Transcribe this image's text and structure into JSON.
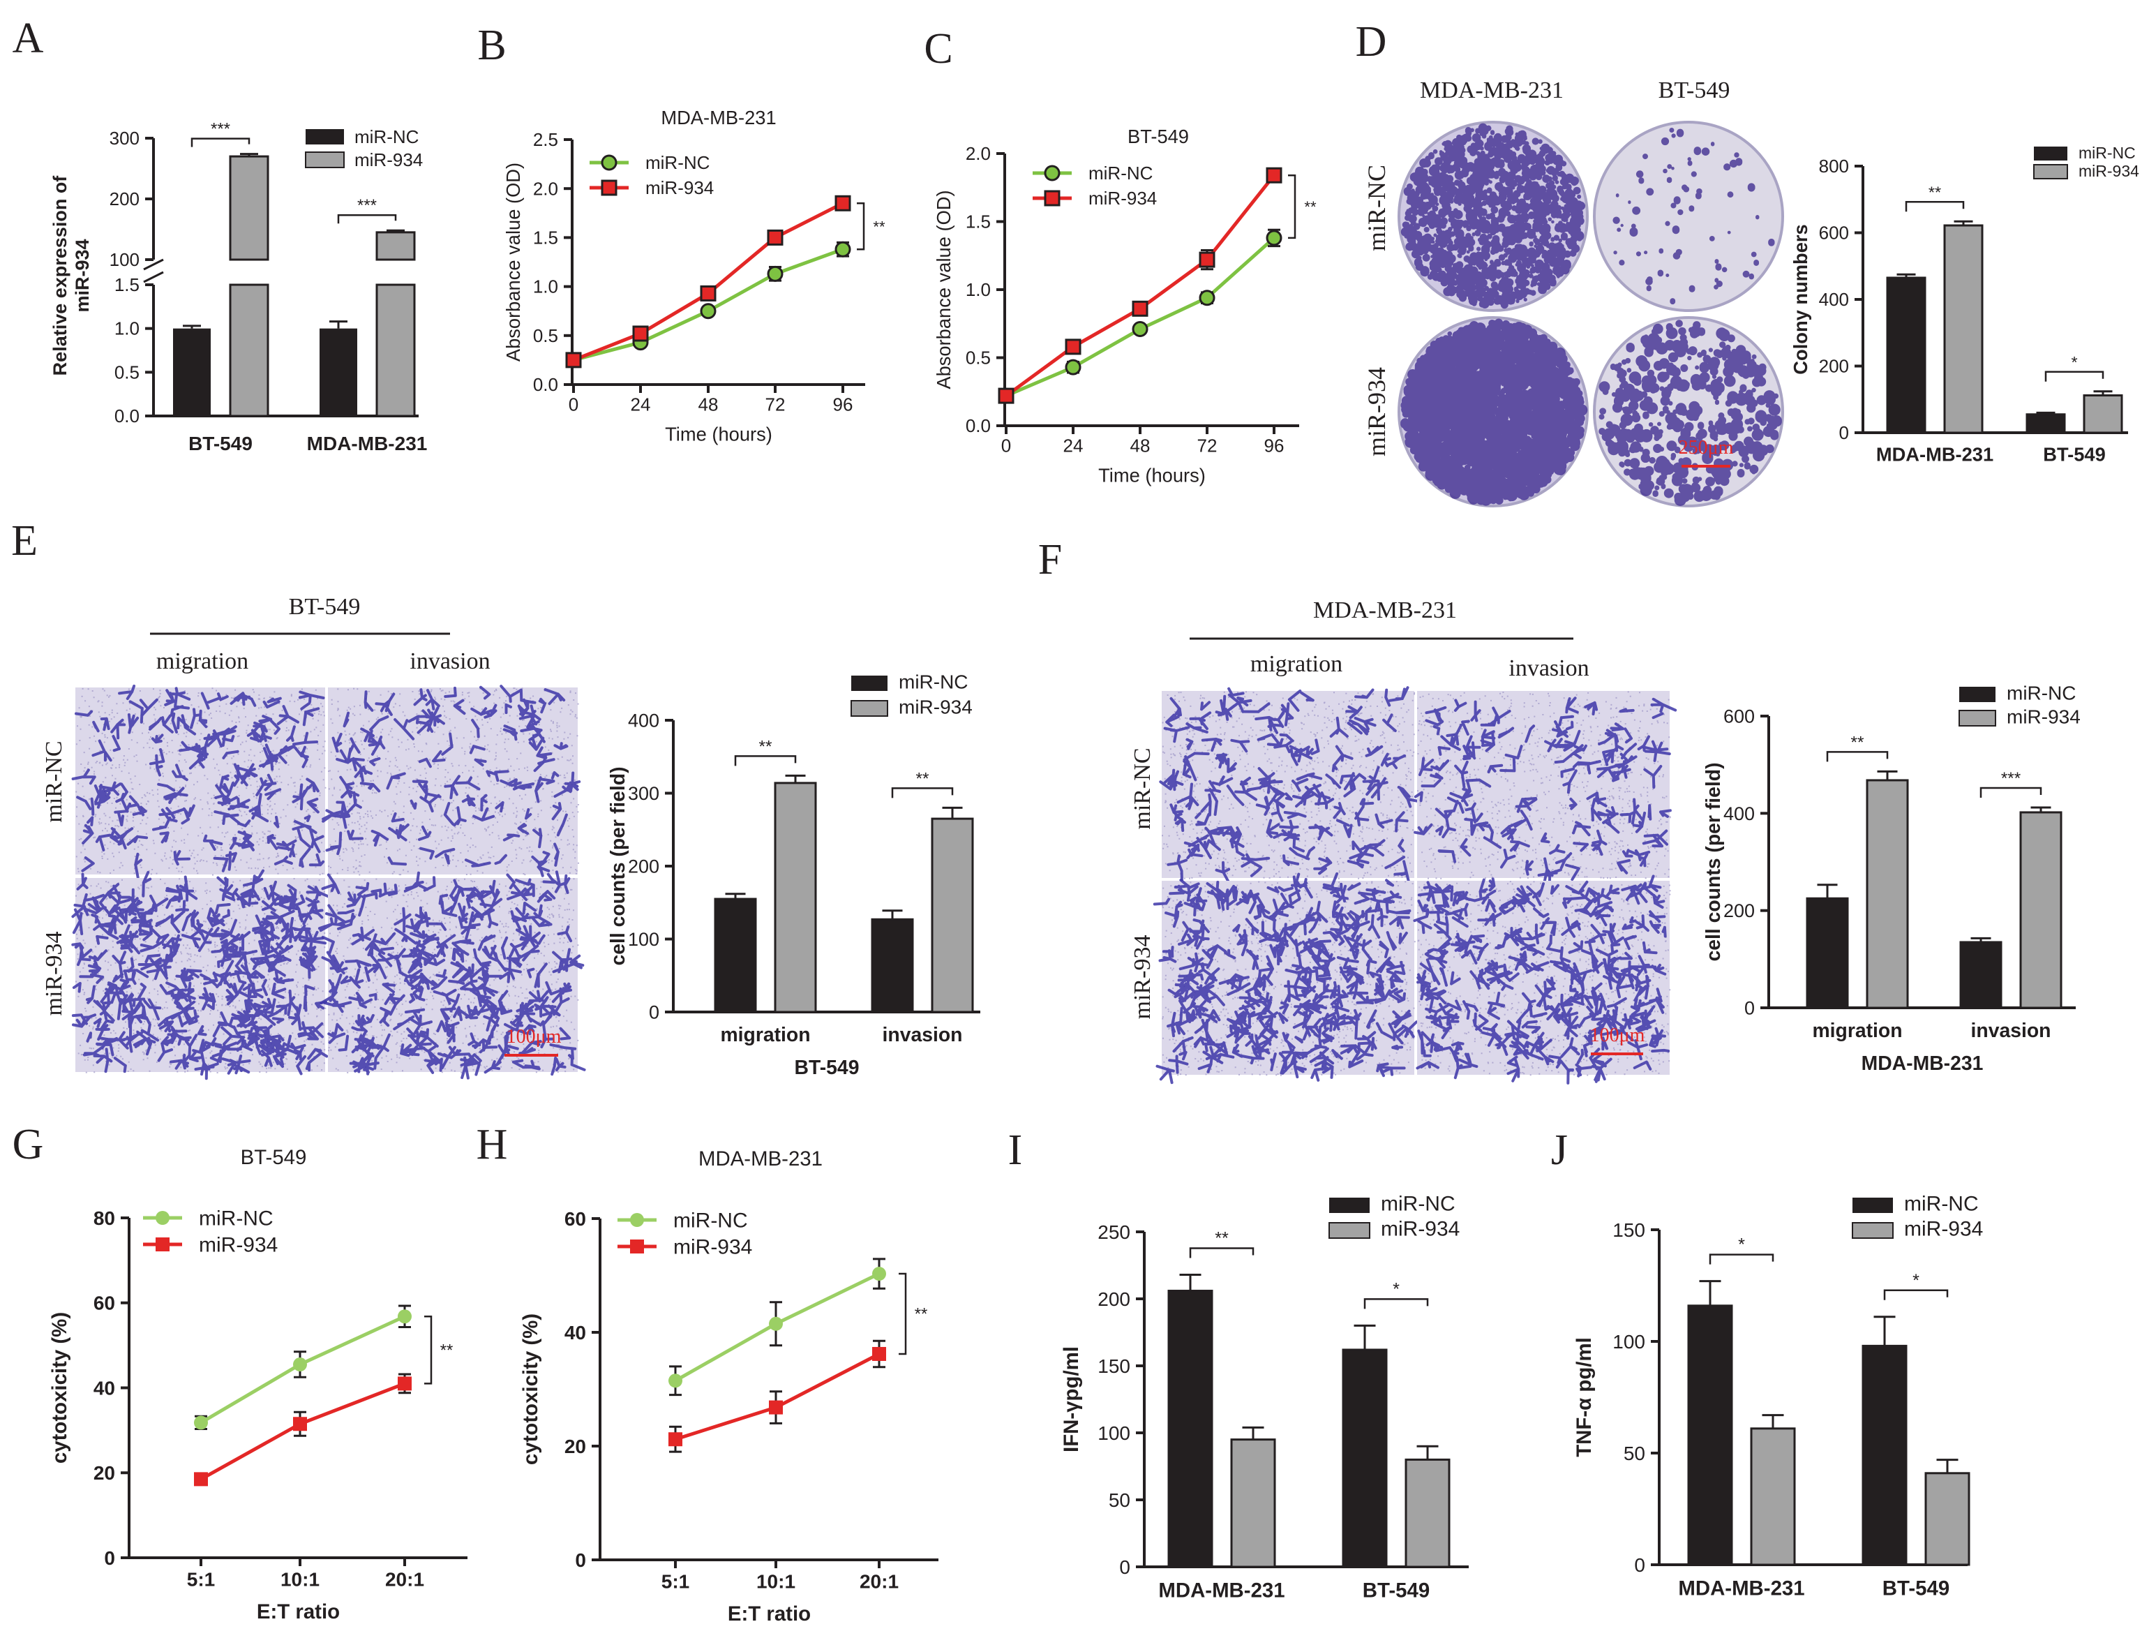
{
  "colors": {
    "black": "#231f20",
    "gray": "#a3a3a3",
    "green": "#7ec242",
    "red": "#e32726",
    "lightgreen": "#9bcf64",
    "photo_bg": "#e9e6f1",
    "dot": "#4b3a96",
    "cell": "#3d36a8",
    "photo_bg2": "#d9d6ea"
  },
  "panel_labels": [
    "A",
    "B",
    "C",
    "D",
    "E",
    "F",
    "G",
    "H",
    "I",
    "J"
  ],
  "legend": {
    "nc": "miR-NC",
    "m934": "miR-934"
  },
  "photos": {
    "d": {
      "columns": [
        "MDA-MB-231",
        "BT-549"
      ],
      "rows": [
        "miR-NC",
        "miR-934"
      ],
      "scale": "250μm"
    },
    "e": {
      "title": "BT-549",
      "columns": [
        "migration",
        "invasion"
      ],
      "rows": [
        "miR-NC",
        "miR-934"
      ],
      "scale": "100μm"
    },
    "f": {
      "title": "MDA-MB-231",
      "columns": [
        "migration",
        "invasion"
      ],
      "rows": [
        "miR-NC",
        "miR-934"
      ],
      "scale": "100μm"
    }
  },
  "chart_data": [
    {
      "id": "A",
      "type": "bar",
      "title": "",
      "ylabel": "Relative expression of miR-934",
      "xlabel": "",
      "categories": [
        "BT-549",
        "MDA-MB-231"
      ],
      "series": [
        {
          "name": "miR-NC",
          "values": [
            1.0,
            1.0
          ],
          "errors": [
            0.03,
            0.08
          ]
        },
        {
          "name": "miR-934",
          "values": [
            270,
            145
          ],
          "errors": [
            4,
            3
          ]
        }
      ],
      "broken_axis": {
        "lower": [
          0,
          1.5
        ],
        "upper": [
          100,
          300
        ]
      },
      "yticks_lower": [
        "0.0",
        "0.5",
        "1.0",
        "1.5"
      ],
      "yticks_upper": [
        "100",
        "200",
        "300"
      ],
      "significance": [
        "***",
        "***"
      ]
    },
    {
      "id": "B",
      "type": "line",
      "title": "MDA-MB-231",
      "xlabel": "Time (hours)",
      "ylabel": "Absorbance value (OD)",
      "x": [
        0,
        24,
        48,
        72,
        96
      ],
      "ylim": [
        0,
        2.5
      ],
      "yticks": [
        "0.0",
        "0.5",
        "1.0",
        "1.5",
        "2.0",
        "2.5"
      ],
      "xticks": [
        "0",
        "24",
        "48",
        "72",
        "96"
      ],
      "series": [
        {
          "name": "miR-NC",
          "values": [
            0.25,
            0.43,
            0.75,
            1.13,
            1.38
          ],
          "errors": [
            0.02,
            0.03,
            0.03,
            0.07,
            0.07
          ]
        },
        {
          "name": "miR-934",
          "values": [
            0.25,
            0.52,
            0.93,
            1.5,
            1.85
          ],
          "errors": [
            0.02,
            0.03,
            0.03,
            0.04,
            0.06
          ]
        }
      ],
      "significance": "**"
    },
    {
      "id": "C",
      "type": "line",
      "title": "BT-549",
      "xlabel": "Time (hours)",
      "ylabel": "Absorbance value (OD)",
      "x": [
        0,
        24,
        48,
        72,
        96
      ],
      "ylim": [
        0,
        2.0
      ],
      "yticks": [
        "0.0",
        "0.5",
        "1.0",
        "1.5",
        "2.0"
      ],
      "xticks": [
        "0",
        "24",
        "48",
        "72",
        "96"
      ],
      "series": [
        {
          "name": "miR-NC",
          "values": [
            0.22,
            0.43,
            0.71,
            0.94,
            1.38
          ],
          "errors": [
            0.02,
            0.04,
            0.02,
            0.04,
            0.06
          ]
        },
        {
          "name": "miR-934",
          "values": [
            0.22,
            0.58,
            0.86,
            1.22,
            1.84
          ],
          "errors": [
            0.02,
            0.03,
            0.02,
            0.07,
            0.04
          ]
        }
      ],
      "significance": "**"
    },
    {
      "id": "D",
      "type": "bar",
      "title": "",
      "ylabel": "Colony numbers",
      "xlabel": "",
      "categories": [
        "MDA-MB-231",
        "BT-549"
      ],
      "ylim": [
        0,
        800
      ],
      "yticks": [
        "0",
        "200",
        "400",
        "600",
        "800"
      ],
      "series": [
        {
          "name": "miR-NC",
          "values": [
            465,
            55
          ],
          "errors": [
            10,
            5
          ]
        },
        {
          "name": "miR-934",
          "values": [
            622,
            112
          ],
          "errors": [
            12,
            12
          ]
        }
      ],
      "significance": [
        "**",
        "*"
      ]
    },
    {
      "id": "E",
      "type": "bar",
      "title": "",
      "ylabel": "cell counts (per field)",
      "xlabel": "BT-549",
      "categories": [
        "migration",
        "invasion"
      ],
      "ylim": [
        0,
        400
      ],
      "yticks": [
        "0",
        "100",
        "200",
        "300",
        "400"
      ],
      "series": [
        {
          "name": "miR-NC",
          "values": [
            155,
            127
          ],
          "errors": [
            7,
            12
          ]
        },
        {
          "name": "miR-934",
          "values": [
            314,
            265
          ],
          "errors": [
            10,
            15
          ]
        }
      ],
      "significance": [
        "**",
        "**"
      ]
    },
    {
      "id": "F",
      "type": "bar",
      "title": "",
      "ylabel": "cell counts (per field)",
      "xlabel": "MDA-MB-231",
      "categories": [
        "migration",
        "invasion"
      ],
      "ylim": [
        0,
        600
      ],
      "yticks": [
        "0",
        "200",
        "400",
        "600"
      ],
      "series": [
        {
          "name": "miR-NC",
          "values": [
            225,
            135
          ],
          "errors": [
            28,
            8
          ]
        },
        {
          "name": "miR-934",
          "values": [
            468,
            402
          ],
          "errors": [
            18,
            10
          ]
        }
      ],
      "significance": [
        "**",
        "***"
      ]
    },
    {
      "id": "G",
      "type": "line",
      "title": "BT-549",
      "xlabel": "E:T ratio",
      "ylabel": "cytotoxicity (%)",
      "categories": [
        "5:1",
        "10:1",
        "20:1"
      ],
      "ylim": [
        0,
        80
      ],
      "yticks": [
        "0",
        "20",
        "40",
        "60",
        "80"
      ],
      "series": [
        {
          "name": "miR-NC",
          "values": [
            31.8,
            45.5,
            56.8
          ],
          "errors": [
            1.5,
            3.0,
            2.5
          ]
        },
        {
          "name": "miR-934",
          "values": [
            18.5,
            31.5,
            41.0
          ],
          "errors": [
            1.0,
            2.8,
            2.2
          ]
        }
      ],
      "significance": "**"
    },
    {
      "id": "H",
      "type": "line",
      "title": "MDA-MB-231",
      "xlabel": "E:T ratio",
      "ylabel": "cytotoxicity (%)",
      "categories": [
        "5:1",
        "10:1",
        "20:1"
      ],
      "ylim": [
        0,
        60
      ],
      "yticks": [
        "0",
        "20",
        "40",
        "60"
      ],
      "series": [
        {
          "name": "miR-NC",
          "values": [
            31.5,
            41.5,
            50.3
          ],
          "errors": [
            2.5,
            3.8,
            2.6
          ]
        },
        {
          "name": "miR-934",
          "values": [
            21.2,
            26.8,
            36.2
          ],
          "errors": [
            2.2,
            2.8,
            2.3
          ]
        }
      ],
      "significance": "**"
    },
    {
      "id": "I",
      "type": "bar",
      "title": "",
      "ylabel": "IFN-γpg/ml",
      "xlabel": "",
      "categories": [
        "MDA-MB-231",
        "BT-549"
      ],
      "ylim": [
        0,
        250
      ],
      "yticks": [
        "0",
        "50",
        "100",
        "150",
        "200",
        "250"
      ],
      "series": [
        {
          "name": "miR-NC",
          "values": [
            206,
            162
          ],
          "errors": [
            12,
            18
          ]
        },
        {
          "name": "miR-934",
          "values": [
            95,
            80
          ],
          "errors": [
            9,
            10
          ]
        }
      ],
      "significance": [
        "**",
        "*"
      ]
    },
    {
      "id": "J",
      "type": "bar",
      "title": "",
      "ylabel": "TNF-α pg/ml",
      "xlabel": "",
      "categories": [
        "MDA-MB-231",
        "BT-549"
      ],
      "ylim": [
        0,
        150
      ],
      "yticks": [
        "0",
        "50",
        "100",
        "150"
      ],
      "series": [
        {
          "name": "miR-NC",
          "values": [
            116,
            98
          ],
          "errors": [
            11,
            13
          ]
        },
        {
          "name": "miR-934",
          "values": [
            61,
            41
          ],
          "errors": [
            6,
            6
          ]
        }
      ],
      "significance": [
        "*",
        "*"
      ]
    }
  ]
}
